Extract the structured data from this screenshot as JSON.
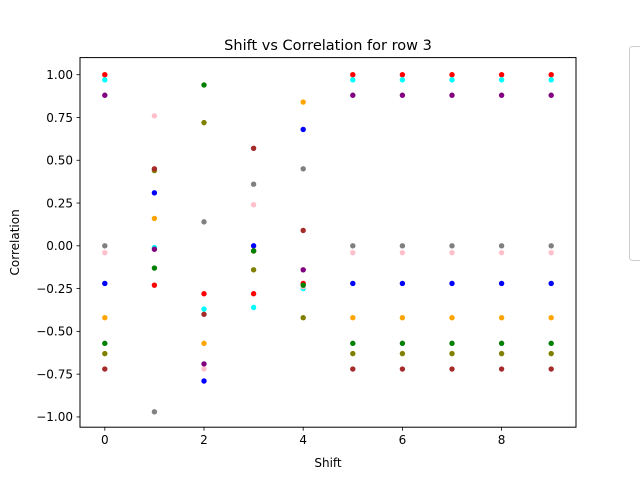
{
  "chart_data": {
    "type": "scatter",
    "title": "Shift vs Correlation for row 3",
    "xlabel": "Shift",
    "ylabel": "Correlation",
    "xlim": [
      -0.5,
      9.5
    ],
    "ylim": [
      -1.06,
      1.1
    ],
    "xticks": [
      0,
      2,
      4,
      6,
      8
    ],
    "xtick_labels": [
      "0",
      "2",
      "4",
      "6",
      "8"
    ],
    "yticks": [
      -1.0,
      -0.75,
      -0.5,
      -0.25,
      0.0,
      0.25,
      0.5,
      0.75,
      1.0
    ],
    "ytick_labels": [
      "−1.00",
      "−0.75",
      "−0.50",
      "−0.25",
      "0.00",
      "0.25",
      "0.50",
      "0.75",
      "1.00"
    ],
    "grid": false,
    "legend": {
      "placement": "outside-right",
      "entries": []
    },
    "x": [
      0,
      1,
      2,
      3,
      4,
      5,
      6,
      7,
      8,
      9
    ],
    "series": [
      {
        "color": "#ff0000",
        "values": [
          1.0,
          -0.23,
          -0.28,
          -0.28,
          -0.22,
          1.0,
          1.0,
          1.0,
          1.0,
          1.0
        ]
      },
      {
        "color": "#00ffff",
        "values": [
          0.97,
          -0.01,
          -0.37,
          -0.36,
          -0.25,
          0.97,
          0.97,
          0.97,
          0.97,
          0.97
        ]
      },
      {
        "color": "#800080",
        "values": [
          0.88,
          -0.02,
          -0.69,
          -0.03,
          -0.14,
          0.88,
          0.88,
          0.88,
          0.88,
          0.88
        ]
      },
      {
        "color": "#808080",
        "values": [
          0.0,
          -0.97,
          0.14,
          0.36,
          0.45,
          0.0,
          0.0,
          0.0,
          0.0,
          0.0
        ]
      },
      {
        "color": "#ffc0cb",
        "values": [
          -0.04,
          0.76,
          -0.72,
          0.24,
          -0.24,
          -0.04,
          -0.04,
          -0.04,
          -0.04,
          -0.04
        ]
      },
      {
        "color": "#0000ff",
        "values": [
          -0.22,
          0.31,
          -0.79,
          0.0,
          0.68,
          -0.22,
          -0.22,
          -0.22,
          -0.22,
          -0.22
        ]
      },
      {
        "color": "#ffa500",
        "values": [
          -0.42,
          0.16,
          -0.57,
          -0.03,
          0.84,
          -0.42,
          -0.42,
          -0.42,
          -0.42,
          -0.42
        ]
      },
      {
        "color": "#008000",
        "values": [
          -0.57,
          -0.13,
          0.94,
          -0.03,
          -0.23,
          -0.57,
          -0.57,
          -0.57,
          -0.57,
          -0.57
        ]
      },
      {
        "color": "#808000",
        "values": [
          -0.63,
          0.44,
          0.72,
          -0.14,
          -0.42,
          -0.63,
          -0.63,
          -0.63,
          -0.63,
          -0.63
        ]
      },
      {
        "color": "#a52a2a",
        "values": [
          -0.72,
          0.45,
          -0.4,
          0.57,
          0.09,
          -0.72,
          -0.72,
          -0.72,
          -0.72,
          -0.72
        ]
      }
    ]
  }
}
